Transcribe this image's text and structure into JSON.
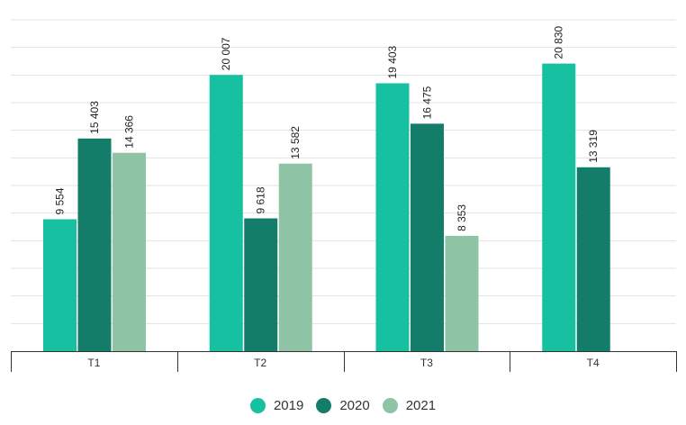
{
  "chart_data": {
    "type": "bar",
    "categories": [
      "T1",
      "T2",
      "T3",
      "T4"
    ],
    "series": [
      {
        "name": "2019",
        "color": "#17c0a0",
        "values": [
          9554,
          20007,
          19403,
          20830
        ]
      },
      {
        "name": "2020",
        "color": "#137d69",
        "values": [
          15403,
          9618,
          16475,
          13319
        ]
      },
      {
        "name": "2021",
        "color": "#8fc3a6",
        "values": [
          14366,
          13582,
          8353,
          null
        ]
      }
    ],
    "data_labels": [
      [
        "9 554",
        "20 007",
        "19 403",
        "20 830"
      ],
      [
        "15 403",
        "9 618",
        "16 475",
        "13 319"
      ],
      [
        "14 366",
        "13 582",
        "8 353",
        ""
      ]
    ],
    "ylim": [
      0,
      24000
    ],
    "grid": true,
    "legend_position": "bottom"
  }
}
